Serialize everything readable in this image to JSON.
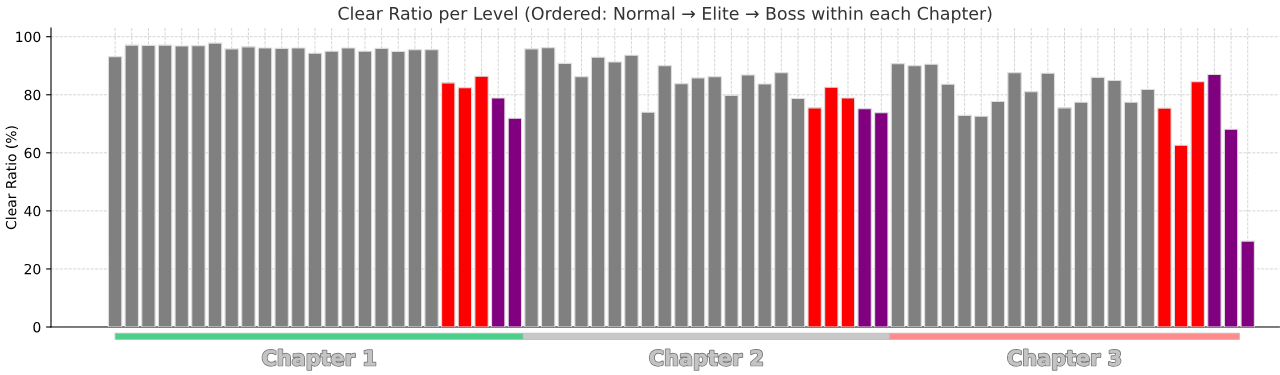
{
  "chart_data": {
    "type": "bar",
    "title": "Clear Ratio per Level (Ordered: Normal → Elite → Boss within each Chapter)",
    "ylabel": "Clear Ratio (%)",
    "categories": [
      null,
      null,
      null,
      null,
      null,
      null,
      null,
      null,
      null,
      null,
      null,
      null,
      null,
      null,
      null,
      null,
      null,
      null,
      null,
      null,
      null,
      null,
      null,
      null,
      null,
      null,
      null,
      null,
      null,
      null,
      null,
      null,
      null,
      null,
      null,
      null,
      null,
      null,
      null,
      null,
      null,
      null,
      null,
      null,
      null,
      null,
      null,
      null,
      null,
      null,
      null,
      null,
      null,
      null,
      null,
      null,
      null,
      null,
      null,
      null,
      null,
      null,
      null,
      null,
      null,
      null,
      null,
      null,
      null
    ],
    "values": [
      93.1,
      97.1,
      97.0,
      97.1,
      96.8,
      96.9,
      97.8,
      95.8,
      96.5,
      96.1,
      96.0,
      96.1,
      94.3,
      95.0,
      96.1,
      95.0,
      96.0,
      94.9,
      95.5,
      95.5,
      84.1,
      82.4,
      86.4,
      78.9,
      71.9,
      95.8,
      96.2,
      90.8,
      86.2,
      92.9,
      91.3,
      93.6,
      74.0,
      90.0,
      83.8,
      85.8,
      86.2,
      79.8,
      86.8,
      83.7,
      87.6,
      78.7,
      75.5,
      82.6,
      78.9,
      75.2,
      73.8,
      90.7,
      90.0,
      90.5,
      83.6,
      72.9,
      72.6,
      77.7,
      87.6,
      81.1,
      87.4,
      75.5,
      77.4,
      86.0,
      84.9,
      77.4,
      81.8,
      75.4,
      62.6,
      84.5,
      87.0,
      68.1,
      29.6
    ],
    "colors": [
      "#808080",
      "#808080",
      "#808080",
      "#808080",
      "#808080",
      "#808080",
      "#808080",
      "#808080",
      "#808080",
      "#808080",
      "#808080",
      "#808080",
      "#808080",
      "#808080",
      "#808080",
      "#808080",
      "#808080",
      "#808080",
      "#808080",
      "#808080",
      "#ff0000",
      "#ff0000",
      "#ff0000",
      "#800080",
      "#800080",
      "#808080",
      "#808080",
      "#808080",
      "#808080",
      "#808080",
      "#808080",
      "#808080",
      "#808080",
      "#808080",
      "#808080",
      "#808080",
      "#808080",
      "#808080",
      "#808080",
      "#808080",
      "#808080",
      "#808080",
      "#ff0000",
      "#ff0000",
      "#ff0000",
      "#800080",
      "#800080",
      "#808080",
      "#808080",
      "#808080",
      "#808080",
      "#808080",
      "#808080",
      "#808080",
      "#808080",
      "#808080",
      "#808080",
      "#808080",
      "#808080",
      "#808080",
      "#808080",
      "#808080",
      "#808080",
      "#ff0000",
      "#ff0000",
      "#ff0000",
      "#800080",
      "#800080",
      "#800080"
    ],
    "ylim": [
      0,
      103
    ],
    "yticks": [
      0,
      20,
      40,
      60,
      80,
      100
    ],
    "grid": true,
    "tick_labels": "y",
    "annotations": [
      "Chapter 1",
      "Chapter 2",
      "Chapter 3"
    ]
  }
}
